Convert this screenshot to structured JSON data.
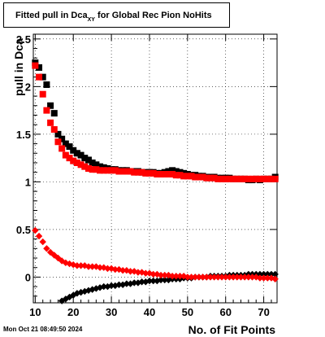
{
  "title": {
    "main": "Fitted pull in Dca",
    "subscript": "XY",
    "rest": "for Global Rec Pion NoHits"
  },
  "timestamp": "Mon Oct 21 08:49:50 2024",
  "chart_data": {
    "type": "scatter",
    "xlabel": "No. of Fit Points",
    "ylabel": "pull in Dca",
    "xlim": [
      9.5,
      73.5
    ],
    "ylim": [
      -0.27,
      2.55
    ],
    "xticks": [
      10,
      20,
      30,
      40,
      50,
      60,
      70
    ],
    "yticks": [
      0,
      0.5,
      1,
      1.5,
      2,
      2.5
    ],
    "ytick_labels": [
      "0",
      "0.5",
      "1",
      "1.5",
      "2",
      "2.5"
    ],
    "grid": true,
    "colors": {
      "black_series": "#000000",
      "red_series": "#ff0000"
    },
    "series": [
      {
        "marker": "square",
        "color": "#000000",
        "x": [
          10,
          11,
          12,
          13,
          14,
          15,
          16,
          17,
          18,
          19,
          20,
          21,
          22,
          23,
          24,
          25,
          26,
          27,
          28,
          29,
          30,
          31,
          32,
          33,
          34,
          35,
          36,
          37,
          38,
          39,
          40,
          41,
          42,
          43,
          44,
          45,
          46,
          47,
          48,
          49,
          50,
          51,
          52,
          53,
          54,
          55,
          56,
          57,
          58,
          59,
          60,
          61,
          62,
          63,
          64,
          65,
          66,
          67,
          68,
          69,
          70,
          71,
          72,
          73
        ],
        "y": [
          2.25,
          2.2,
          2.1,
          2.02,
          1.8,
          1.72,
          1.5,
          1.45,
          1.4,
          1.37,
          1.33,
          1.3,
          1.28,
          1.25,
          1.23,
          1.2,
          1.18,
          1.16,
          1.15,
          1.14,
          1.13,
          1.13,
          1.12,
          1.12,
          1.12,
          1.11,
          1.11,
          1.11,
          1.1,
          1.1,
          1.1,
          1.1,
          1.09,
          1.09,
          1.1,
          1.11,
          1.12,
          1.11,
          1.1,
          1.09,
          1.08,
          1.07,
          1.07,
          1.06,
          1.06,
          1.05,
          1.05,
          1.05,
          1.04,
          1.04,
          1.04,
          1.04,
          1.03,
          1.03,
          1.03,
          1.03,
          1.02,
          1.02,
          1.03,
          1.02,
          1.03,
          1.03,
          1.03,
          1.05
        ]
      },
      {
        "marker": "square",
        "color": "#ff0000",
        "x": [
          10,
          11,
          12,
          13,
          14,
          15,
          16,
          17,
          18,
          19,
          20,
          21,
          22,
          23,
          24,
          25,
          26,
          27,
          28,
          29,
          30,
          31,
          32,
          33,
          34,
          35,
          36,
          37,
          38,
          39,
          40,
          41,
          42,
          43,
          44,
          45,
          46,
          47,
          48,
          49,
          50,
          51,
          52,
          53,
          54,
          55,
          56,
          57,
          58,
          59,
          60,
          61,
          62,
          63,
          64,
          65,
          66,
          67,
          68,
          69,
          70,
          71,
          72,
          73
        ],
        "y": [
          2.22,
          2.1,
          1.92,
          1.75,
          1.62,
          1.55,
          1.42,
          1.35,
          1.28,
          1.25,
          1.22,
          1.2,
          1.18,
          1.16,
          1.14,
          1.13,
          1.13,
          1.12,
          1.12,
          1.12,
          1.12,
          1.12,
          1.11,
          1.11,
          1.11,
          1.11,
          1.1,
          1.1,
          1.1,
          1.09,
          1.09,
          1.09,
          1.08,
          1.08,
          1.08,
          1.08,
          1.08,
          1.07,
          1.07,
          1.06,
          1.06,
          1.06,
          1.05,
          1.05,
          1.05,
          1.04,
          1.04,
          1.04,
          1.03,
          1.03,
          1.03,
          1.03,
          1.03,
          1.03,
          1.03,
          1.03,
          1.03,
          1.03,
          1.03,
          1.03,
          1.03,
          1.03,
          1.03,
          1.03
        ]
      },
      {
        "marker": "diamond",
        "color": "#000000",
        "x": [
          17,
          18,
          19,
          20,
          21,
          22,
          23,
          24,
          25,
          26,
          27,
          28,
          29,
          30,
          31,
          32,
          33,
          34,
          35,
          36,
          37,
          38,
          39,
          40,
          41,
          42,
          43,
          44,
          45,
          46,
          47,
          48,
          49,
          50,
          51,
          52,
          53,
          54,
          55,
          56,
          57,
          58,
          59,
          60,
          61,
          62,
          63,
          64,
          65,
          66,
          67,
          68,
          69,
          70,
          71,
          72,
          73
        ],
        "y": [
          -0.25,
          -0.23,
          -0.21,
          -0.19,
          -0.17,
          -0.16,
          -0.15,
          -0.14,
          -0.13,
          -0.12,
          -0.11,
          -0.1,
          -0.1,
          -0.09,
          -0.09,
          -0.08,
          -0.08,
          -0.07,
          -0.07,
          -0.06,
          -0.06,
          -0.05,
          -0.05,
          -0.04,
          -0.04,
          -0.04,
          -0.03,
          -0.03,
          -0.03,
          -0.02,
          -0.02,
          -0.02,
          -0.01,
          -0.01,
          -0.01,
          0,
          0,
          0,
          0,
          0.01,
          0.01,
          0.01,
          0.01,
          0.01,
          0.02,
          0.02,
          0.02,
          0.02,
          0.02,
          0.03,
          0.03,
          0.03,
          0.03,
          0.03,
          0.03,
          0.03,
          0.03
        ]
      },
      {
        "marker": "diamond",
        "color": "#ff0000",
        "x": [
          10,
          11,
          12,
          13,
          14,
          15,
          16,
          17,
          18,
          19,
          20,
          21,
          22,
          23,
          24,
          25,
          26,
          27,
          28,
          29,
          30,
          31,
          32,
          33,
          34,
          35,
          36,
          37,
          38,
          39,
          40,
          41,
          42,
          43,
          44,
          45,
          46,
          47,
          48,
          49,
          50,
          51,
          52,
          53,
          54,
          55,
          56,
          57,
          58,
          59,
          60,
          61,
          62,
          63,
          64,
          65,
          66,
          67,
          68,
          69,
          70,
          71,
          72,
          73
        ],
        "y": [
          0.49,
          0.43,
          0.37,
          0.3,
          0.26,
          0.23,
          0.2,
          0.17,
          0.15,
          0.14,
          0.13,
          0.12,
          0.12,
          0.12,
          0.11,
          0.11,
          0.11,
          0.1,
          0.1,
          0.09,
          0.09,
          0.08,
          0.08,
          0.07,
          0.07,
          0.06,
          0.06,
          0.05,
          0.05,
          0.04,
          0.04,
          0.03,
          0.03,
          0.02,
          0.02,
          0.02,
          0.01,
          0.01,
          0.01,
          0.01,
          0,
          0,
          0,
          0,
          0,
          0,
          0,
          0,
          0,
          0,
          0,
          0,
          0,
          0,
          0,
          0,
          0,
          0,
          0,
          -0.01,
          -0.01,
          -0.01,
          -0.01,
          -0.02
        ]
      }
    ]
  }
}
